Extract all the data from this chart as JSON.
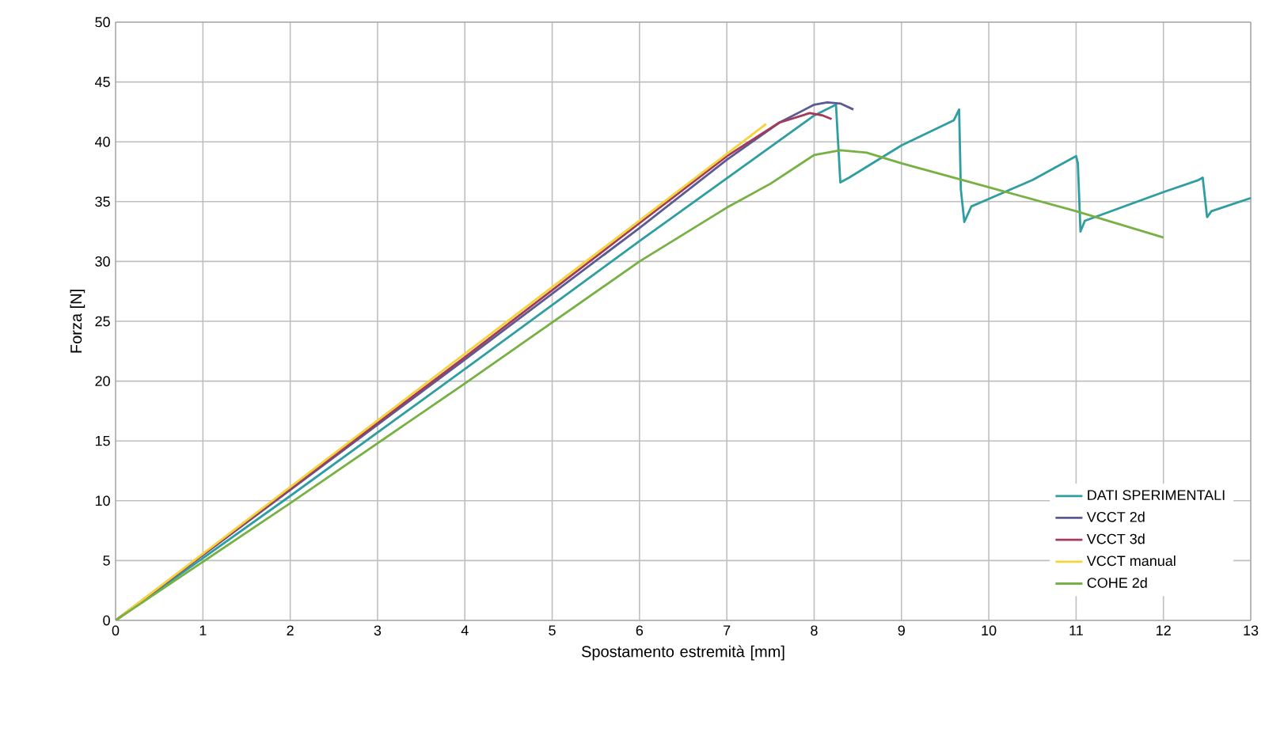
{
  "chart_data": {
    "type": "line",
    "xlabel": "Spostamento estremità [mm]",
    "ylabel": "Forza [N]",
    "xlim": [
      0,
      13
    ],
    "xticks": [
      0,
      1,
      2,
      3,
      4,
      5,
      6,
      7,
      8,
      9,
      10,
      11,
      12,
      13
    ],
    "ylim": [
      0,
      50
    ],
    "yticks": [
      0,
      5,
      10,
      15,
      20,
      25,
      30,
      35,
      40,
      45,
      50
    ],
    "grid": true,
    "legend": "bottom right",
    "marker": "none",
    "line_style": "solid",
    "series": [
      {
        "name": "DATI SPERIMENTALI",
        "color": "#2f9ea0",
        "x": [
          0,
          2,
          4,
          6,
          8,
          8.25,
          8.3,
          8.4,
          9,
          9.6,
          9.66,
          9.68,
          9.72,
          9.8,
          10.5,
          11.0,
          11.02,
          11.05,
          11.1,
          12,
          12.4,
          12.45,
          12.5,
          12.55,
          13
        ],
        "values": [
          0,
          10.4,
          21,
          31.7,
          42.2,
          43.1,
          36.6,
          37,
          39.7,
          41.8,
          42.7,
          36,
          33.3,
          34.6,
          36.8,
          38.8,
          38.2,
          32.5,
          33.4,
          35.8,
          36.8,
          37,
          33.7,
          34.2,
          35.3
        ]
      },
      {
        "name": "VCCT 2d",
        "color": "#5c5a94",
        "x": [
          0,
          2,
          4,
          6,
          7,
          7.6,
          8,
          8.15,
          8.3,
          8.45
        ],
        "values": [
          0,
          10.9,
          21.8,
          32.8,
          38.5,
          41.6,
          43.1,
          43.3,
          43.2,
          42.7
        ]
      },
      {
        "name": "VCCT 3d",
        "color": "#a43a5a",
        "x": [
          0,
          2,
          4,
          6,
          7,
          7.6,
          7.95,
          8.1,
          8.2
        ],
        "values": [
          0,
          11,
          22,
          33.2,
          38.8,
          41.6,
          42.4,
          42.2,
          41.9
        ]
      },
      {
        "name": "VCCT manual",
        "color": "#f5d33a",
        "x": [
          0,
          7.45
        ],
        "values": [
          0,
          41.5
        ]
      },
      {
        "name": "COHE 2d",
        "color": "#77b043",
        "x": [
          0,
          2,
          4,
          6,
          7,
          7.5,
          8,
          8.3,
          8.6,
          9,
          10,
          11,
          12
        ],
        "values": [
          0,
          9.8,
          19.8,
          30,
          34.5,
          36.5,
          38.9,
          39.3,
          39.1,
          38.2,
          36.2,
          34.2,
          32
        ]
      }
    ]
  }
}
